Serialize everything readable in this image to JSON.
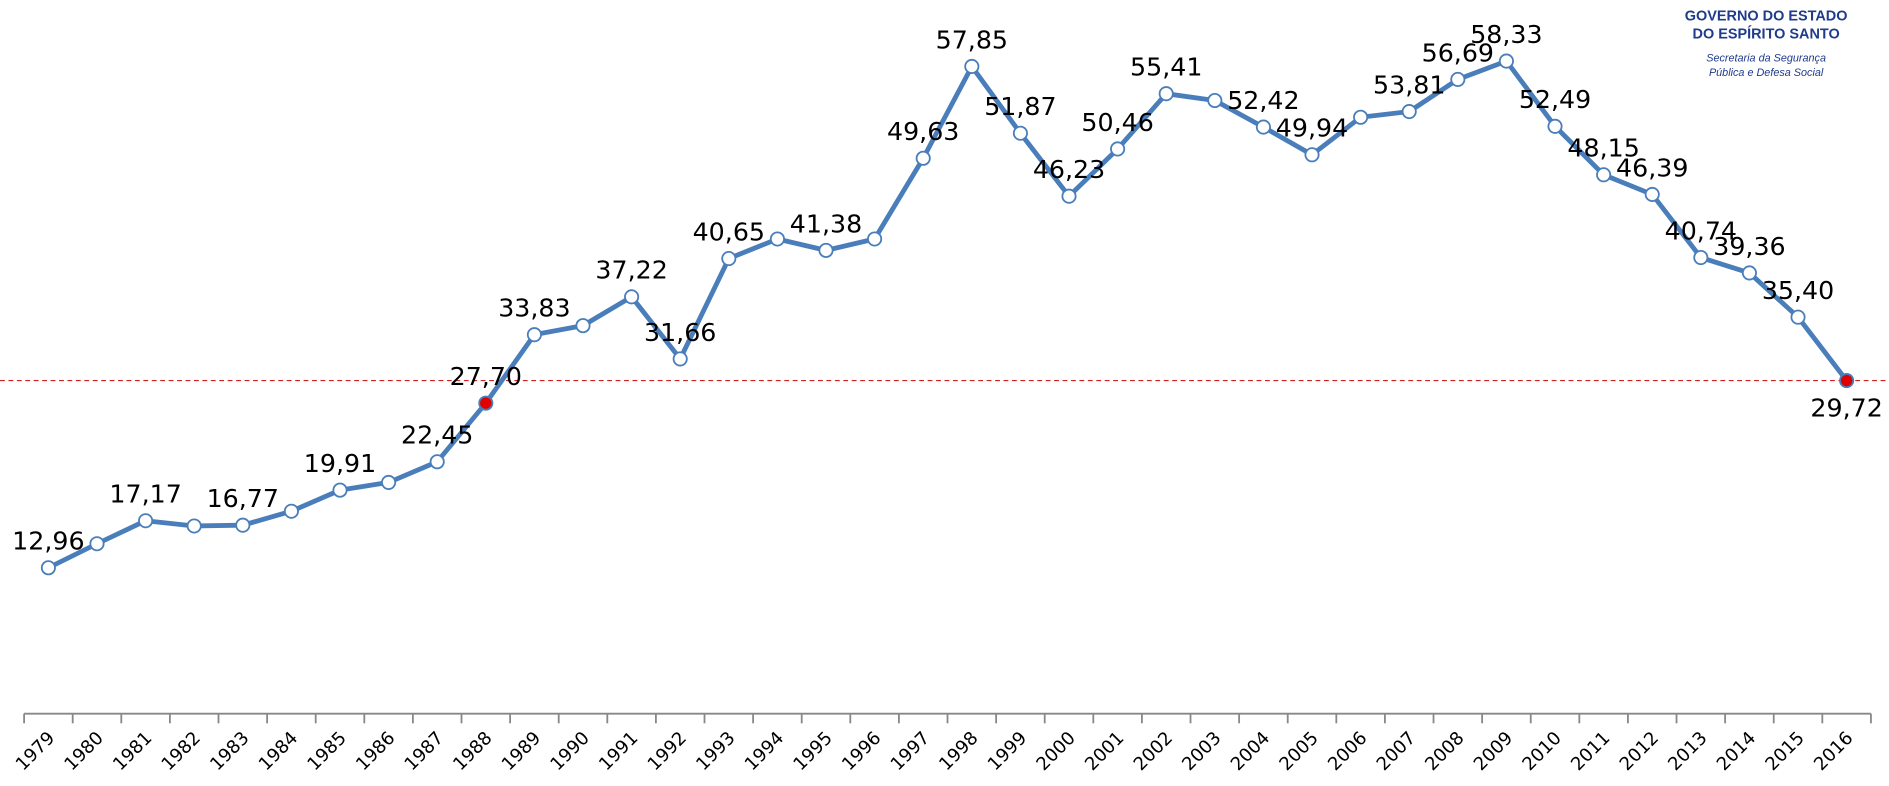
{
  "chart_data": {
    "type": "line",
    "categories": [
      "1979",
      "1980",
      "1981",
      "1982",
      "1983",
      "1984",
      "1985",
      "1986",
      "1987",
      "1988",
      "1989",
      "1990",
      "1991",
      "1992",
      "1993",
      "1994",
      "1995",
      "1996",
      "1997",
      "1998",
      "1999",
      "2000",
      "2001",
      "2002",
      "2003",
      "2004",
      "2005",
      "2006",
      "2007",
      "2008",
      "2009",
      "2010",
      "2011",
      "2012",
      "2013",
      "2014",
      "2015",
      "2016"
    ],
    "series": [
      {
        "name": null,
        "color": "#4a7ebb",
        "values": [
          12.96,
          15.11,
          17.17,
          16.7,
          16.77,
          18.02,
          19.91,
          20.6,
          22.45,
          27.7,
          33.83,
          34.64,
          37.22,
          31.66,
          40.65,
          42.4,
          41.38,
          42.4,
          49.63,
          57.85,
          51.87,
          46.23,
          50.46,
          55.41,
          54.8,
          52.42,
          49.94,
          53.3,
          53.81,
          56.69,
          58.33,
          52.49,
          48.15,
          46.39,
          40.74,
          39.36,
          35.4,
          29.72
        ],
        "value_labels": [
          "12,96",
          null,
          "17,17",
          null,
          "16,77",
          null,
          "19,91",
          null,
          "22,45",
          "27,70",
          "33,83",
          null,
          "37,22",
          "31,66",
          "40,65",
          null,
          "41,38",
          null,
          "49,63",
          "57,85",
          "51,87",
          "46,23",
          "50,46",
          "55,41",
          null,
          "52,42",
          "49,94",
          null,
          "53,81",
          "56,69",
          "58,33",
          "52,49",
          "48,15",
          "46,39",
          "40,74",
          "39,36",
          "35,40",
          "29,72"
        ]
      }
    ],
    "highlight": [
      9,
      37
    ],
    "highlight_color": "#e00000",
    "reference_line": {
      "value": 29.72,
      "color": "#d02020"
    },
    "ylim": [
      0,
      63.8
    ]
  },
  "logo": {
    "line1": "GOVERNO DO ESTADO",
    "line2": "DO ESPÍRITO SANTO",
    "line3": "Secretaria da Segurança",
    "line4": "Pública e Defesa Social"
  }
}
